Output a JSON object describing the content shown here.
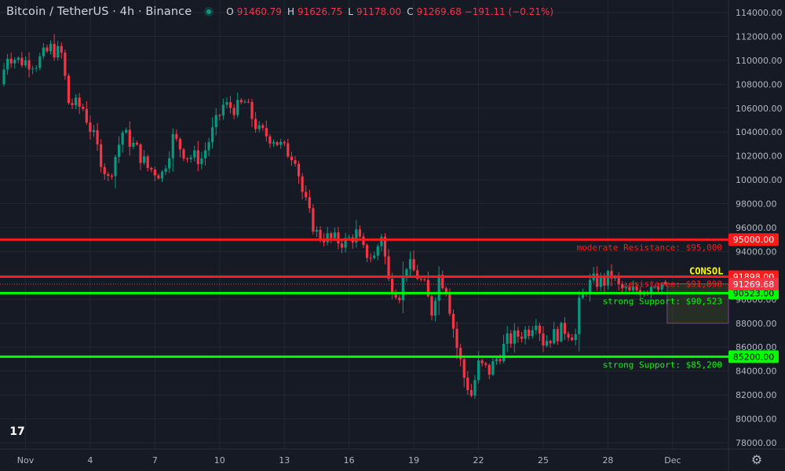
{
  "header": {
    "title": "Bitcoin / TetherUS · 4h · Binance",
    "ohlc": [
      {
        "key": "O",
        "value": "91460.79"
      },
      {
        "key": "H",
        "value": "91626.75"
      },
      {
        "key": "L",
        "value": "91178.00"
      },
      {
        "key": "C",
        "value": "91269.68 −191.11 (−0.21%)"
      }
    ]
  },
  "logo_text": "17",
  "colors": {
    "background": "#161a25",
    "grid": "#232734",
    "up": "#089981",
    "down": "#f23645",
    "resistance": "#ff1a1a",
    "support": "#00ff00",
    "price_label": "#f23645",
    "consol": "#ffff00"
  },
  "chart_data": {
    "type": "candlestick",
    "symbol": "BTCUSDT",
    "interval": "4h",
    "ylim": [
      77000,
      115000
    ],
    "y_ticks": [
      78000,
      80000,
      82000,
      84000,
      86000,
      88000,
      90000,
      92000,
      94000,
      96000,
      98000,
      100000,
      102000,
      104000,
      106000,
      108000,
      110000,
      112000,
      114000
    ],
    "y_tick_labels": [
      "78000.00",
      "80000.00",
      "82000.00",
      "84000.00",
      "86000.00",
      "88000.00",
      "90000.00",
      "92000.00",
      "94000.00",
      "96000.00",
      "98000.00",
      "100000.00",
      "102000.00",
      "104000.00",
      "106000.00",
      "108000.00",
      "110000.00",
      "112000.00",
      "114000.00"
    ],
    "x_ticks": [
      {
        "label": "Nov",
        "bar": 6
      },
      {
        "label": "4",
        "bar": 24
      },
      {
        "label": "7",
        "bar": 42
      },
      {
        "label": "10",
        "bar": 60
      },
      {
        "label": "13",
        "bar": 78
      },
      {
        "label": "16",
        "bar": 96
      },
      {
        "label": "19",
        "bar": 114
      },
      {
        "label": "22",
        "bar": 132
      },
      {
        "label": "25",
        "bar": 150
      },
      {
        "label": "28",
        "bar": 168
      },
      {
        "label": "Dec",
        "bar": 186
      }
    ],
    "bar_count": 188,
    "anchors": [
      [
        0,
        108000
      ],
      [
        2,
        110500
      ],
      [
        5,
        110000
      ],
      [
        10,
        109800
      ],
      [
        14,
        111000
      ],
      [
        17,
        110500
      ],
      [
        19,
        106500
      ],
      [
        23,
        106000
      ],
      [
        26,
        103500
      ],
      [
        30,
        100000
      ],
      [
        34,
        104000
      ],
      [
        38,
        102500
      ],
      [
        41,
        101000
      ],
      [
        45,
        100500
      ],
      [
        48,
        103500
      ],
      [
        52,
        102000
      ],
      [
        56,
        101800
      ],
      [
        59,
        104000
      ],
      [
        62,
        106200
      ],
      [
        66,
        106000
      ],
      [
        68,
        106500
      ],
      [
        72,
        104000
      ],
      [
        76,
        103500
      ],
      [
        79,
        102500
      ],
      [
        82,
        102000
      ],
      [
        84,
        99000
      ],
      [
        86,
        97000
      ],
      [
        88,
        95500
      ],
      [
        92,
        95000
      ],
      [
        96,
        94800
      ],
      [
        99,
        95500
      ],
      [
        101,
        94000
      ],
      [
        104,
        93500
      ],
      [
        106,
        95500
      ],
      [
        108,
        91500
      ],
      [
        111,
        90500
      ],
      [
        113,
        93000
      ],
      [
        116,
        92000
      ],
      [
        118,
        91000
      ],
      [
        120,
        89000
      ],
      [
        122,
        92000
      ],
      [
        124,
        91000
      ],
      [
        127,
        86000
      ],
      [
        129,
        83500
      ],
      [
        131,
        82000
      ],
      [
        133,
        84500
      ],
      [
        136,
        84000
      ],
      [
        138,
        85000
      ],
      [
        141,
        86500
      ],
      [
        144,
        87000
      ],
      [
        147,
        87500
      ],
      [
        149,
        88500
      ],
      [
        151,
        86500
      ],
      [
        154,
        87000
      ],
      [
        157,
        87500
      ],
      [
        160,
        87000
      ],
      [
        161,
        89500
      ],
      [
        163,
        91000
      ],
      [
        165,
        91500
      ],
      [
        168,
        91500
      ],
      [
        170,
        92000
      ],
      [
        172,
        91000
      ],
      [
        175,
        90500
      ],
      [
        177,
        90800
      ],
      [
        180,
        91000
      ],
      [
        182,
        91500
      ],
      [
        184,
        91270
      ]
    ],
    "last_candle": {
      "open": 91460.79,
      "high": 91626.75,
      "low": 91178.0,
      "close": 91269.68
    },
    "levels": [
      {
        "name": "moderate-resistance",
        "price": 95000,
        "label": "moderate Resistance: $95,000",
        "axis_label": "95000.00",
        "kind": "resistance"
      },
      {
        "name": "strong-resistance",
        "price": 91898,
        "label": "…esistance: $91,898",
        "axis_label": "91898.00",
        "kind": "resistance"
      },
      {
        "name": "strong-support-high",
        "price": 90523,
        "label": "strong Support: $90,523",
        "axis_label": "90523.00",
        "kind": "support"
      },
      {
        "name": "strong-support-low",
        "price": 85200,
        "label": "strong Support: $85,200",
        "axis_label": "85200.00",
        "kind": "support"
      }
    ],
    "current_price": {
      "price": 91269.68,
      "axis_label": "91269.68"
    },
    "consol_label": "CONSOL",
    "consol_zone": {
      "from_bar": 186,
      "low": 88000,
      "high": 91300
    }
  }
}
